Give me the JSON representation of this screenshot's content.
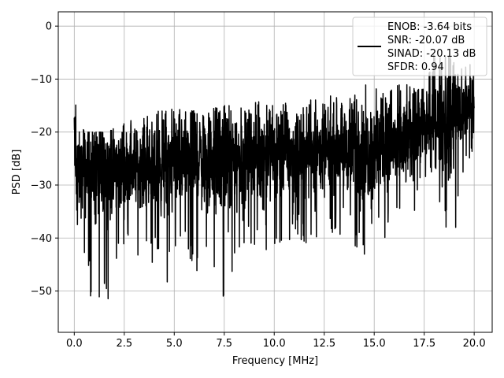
{
  "chart_data": {
    "type": "line",
    "title": "",
    "xlabel": "Frequency [MHz]",
    "ylabel": "PSD [dB]",
    "xlim": [
      -0.8,
      20.9
    ],
    "ylim": [
      -57.8,
      2.7
    ],
    "grid": true,
    "x_ticks": [
      0.0,
      2.5,
      5.0,
      7.5,
      10.0,
      12.5,
      15.0,
      17.5,
      20.0
    ],
    "x_tick_labels": [
      "0.0",
      "2.5",
      "5.0",
      "7.5",
      "10.0",
      "12.5",
      "15.0",
      "17.5",
      "20.0"
    ],
    "y_ticks": [
      0,
      -10,
      -20,
      -30,
      -40,
      -50
    ],
    "y_tick_labels": [
      "0",
      "−10",
      "−20",
      "−30",
      "−40",
      "−50"
    ],
    "legend_position": "top-right",
    "legend": [
      "ENOB: -3.64 bits",
      "SNR: -20.07 dB",
      "SINAD: -20.13 dB",
      "SFDR: 0.94"
    ],
    "series": [
      {
        "color": "#000000",
        "x_range": [
          0.0,
          20.0
        ],
        "envelope": [
          {
            "x": 0.0,
            "min": -31,
            "max": -9,
            "mean": -20
          },
          {
            "x": 0.05,
            "min": -37,
            "max": -12,
            "mean": -26
          },
          {
            "x": 0.2,
            "min": -41,
            "max": -16,
            "mean": -28
          },
          {
            "x": 0.5,
            "min": -47,
            "max": -20,
            "mean": -28
          },
          {
            "x": 1.0,
            "min": -55,
            "max": -20,
            "mean": -28
          },
          {
            "x": 1.7,
            "min": -52,
            "max": -20,
            "mean": -27
          },
          {
            "x": 2.5,
            "min": -44,
            "max": -18,
            "mean": -27
          },
          {
            "x": 3.5,
            "min": -43,
            "max": -17,
            "mean": -26
          },
          {
            "x": 4.6,
            "min": -49,
            "max": -15,
            "mean": -26
          },
          {
            "x": 5.5,
            "min": -45,
            "max": -16,
            "mean": -25
          },
          {
            "x": 6.5,
            "min": -48,
            "max": -16,
            "mean": -25
          },
          {
            "x": 7.5,
            "min": -54,
            "max": -15,
            "mean": -25
          },
          {
            "x": 8.5,
            "min": -41,
            "max": -15,
            "mean": -25
          },
          {
            "x": 9.5,
            "min": -44,
            "max": -14,
            "mean": -24
          },
          {
            "x": 10.5,
            "min": -42,
            "max": -13,
            "mean": -24
          },
          {
            "x": 11.5,
            "min": -41,
            "max": -14,
            "mean": -24
          },
          {
            "x": 12.5,
            "min": -40,
            "max": -13,
            "mean": -24
          },
          {
            "x": 13.5,
            "min": -40,
            "max": -13,
            "mean": -23
          },
          {
            "x": 14.5,
            "min": -44,
            "max": -10,
            "mean": -24
          },
          {
            "x": 15.5,
            "min": -40,
            "max": -12,
            "mean": -23
          },
          {
            "x": 16.5,
            "min": -40,
            "max": -10,
            "mean": -22
          },
          {
            "x": 17.2,
            "min": -33,
            "max": -10,
            "mean": -20
          },
          {
            "x": 18.0,
            "min": -30,
            "max": -5,
            "mean": -18
          },
          {
            "x": 18.8,
            "min": -44,
            "max": -5,
            "mean": -17
          },
          {
            "x": 19.5,
            "min": -30,
            "max": -5,
            "mean": -16
          },
          {
            "x": 20.0,
            "min": -22,
            "max": -8,
            "mean": -14
          }
        ]
      }
    ]
  }
}
